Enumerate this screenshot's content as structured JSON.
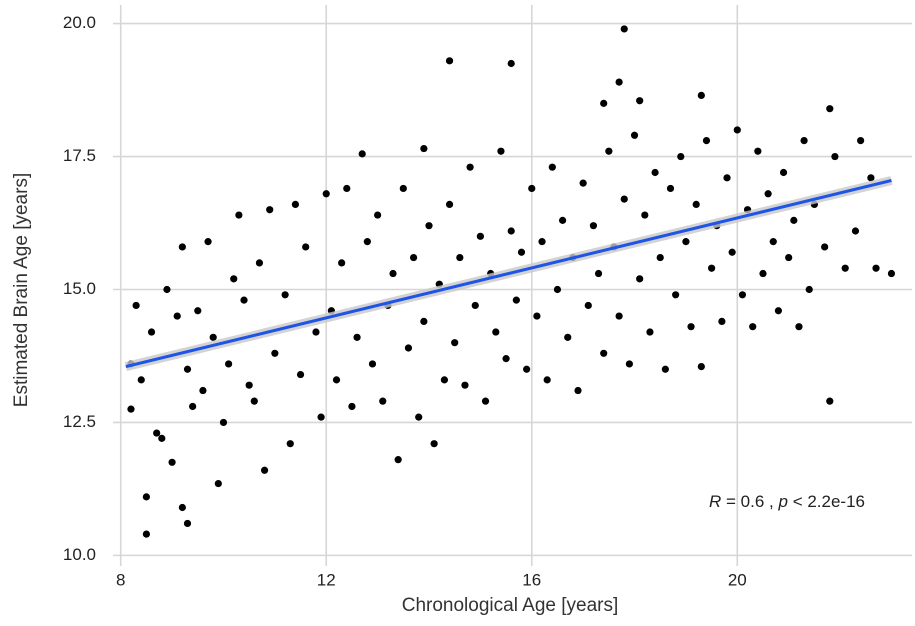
{
  "chart_data": {
    "type": "scatter",
    "xlabel": "Chronological Age [years]",
    "ylabel": "Estimated Brain Age [years]",
    "xlim": [
      7.85,
      23.4
    ],
    "ylim": [
      9.8,
      20.35
    ],
    "xticks": [
      8,
      12,
      16,
      20
    ],
    "yticks": [
      {
        "value": 10,
        "label": "10.0"
      },
      12.5,
      {
        "value": 15,
        "label": "15.0"
      },
      17.5,
      {
        "value": 20,
        "label": "20.0"
      }
    ],
    "grid": true,
    "color": "#000000",
    "x": [
      8.2,
      8.3,
      8.4,
      8.6,
      8.7,
      8.8,
      8.9,
      9.0,
      9.1,
      9.2,
      9.3,
      9.4,
      9.5,
      9.6,
      9.7,
      9.8,
      10.0,
      10.1,
      10.2,
      10.3,
      10.4,
      10.5,
      10.6,
      10.7,
      10.8,
      10.9,
      11.0,
      11.2,
      11.3,
      11.4,
      11.5,
      11.6,
      11.8,
      11.9,
      12.0,
      12.1,
      12.2,
      12.3,
      12.4,
      12.5,
      12.6,
      12.8,
      12.9,
      13.0,
      13.1,
      13.2,
      13.3,
      13.4,
      13.5,
      13.6,
      13.7,
      13.8,
      13.9,
      14.0,
      14.1,
      14.2,
      14.3,
      14.4,
      14.5,
      14.6,
      14.7,
      14.8,
      14.9,
      15.0,
      15.1,
      15.2,
      15.3,
      15.4,
      15.5,
      15.6,
      15.7,
      15.8,
      15.9,
      16.0,
      16.1,
      16.2,
      16.3,
      16.4,
      16.5,
      16.6,
      16.7,
      16.8,
      16.9,
      17.0,
      17.1,
      17.2,
      17.3,
      17.4,
      17.5,
      17.6,
      17.7,
      17.8,
      17.9,
      18.0,
      18.1,
      18.2,
      18.3,
      18.4,
      18.5,
      18.6,
      18.7,
      18.8,
      18.9,
      19.0,
      19.1,
      19.2,
      19.3,
      19.4,
      19.5,
      19.6,
      19.7,
      19.8,
      19.9,
      20.0,
      20.1,
      20.2,
      20.3,
      20.4,
      20.5,
      20.6,
      20.7,
      20.8,
      20.9,
      21.0,
      21.1,
      21.2,
      21.3,
      21.4,
      21.5,
      21.7,
      21.9,
      22.1,
      22.3,
      22.4,
      22.6,
      22.7,
      8.5,
      8.5,
      9.3,
      9.2,
      9.9,
      8.2,
      17.8,
      14.4,
      15.6,
      17.7,
      21.8,
      21.8,
      23.0,
      13.9,
      12.7,
      19.3,
      18.1,
      17.4
    ],
    "y": [
      13.6,
      14.7,
      13.3,
      14.2,
      12.3,
      12.2,
      15.0,
      11.75,
      14.5,
      15.8,
      13.5,
      12.8,
      14.6,
      13.1,
      15.9,
      14.1,
      12.5,
      13.6,
      15.2,
      16.4,
      14.8,
      13.2,
      12.9,
      15.5,
      11.6,
      16.5,
      13.8,
      14.9,
      12.1,
      16.6,
      13.4,
      15.8,
      14.2,
      12.6,
      16.8,
      14.6,
      13.3,
      15.5,
      16.9,
      12.8,
      14.1,
      15.9,
      13.6,
      16.4,
      12.9,
      14.7,
      15.3,
      11.8,
      16.9,
      13.9,
      15.6,
      12.6,
      14.4,
      16.2,
      12.1,
      15.1,
      13.3,
      16.6,
      14.0,
      15.6,
      13.2,
      17.3,
      14.7,
      16.0,
      12.9,
      15.3,
      14.2,
      17.6,
      13.7,
      16.1,
      14.8,
      15.7,
      13.5,
      16.9,
      14.5,
      15.9,
      13.3,
      17.3,
      15.0,
      16.3,
      14.1,
      15.6,
      13.1,
      17.0,
      14.7,
      16.2,
      15.3,
      13.8,
      17.6,
      15.8,
      14.5,
      16.7,
      13.6,
      17.9,
      15.2,
      16.4,
      14.2,
      17.2,
      15.6,
      13.5,
      16.9,
      14.9,
      17.5,
      15.9,
      14.3,
      16.6,
      13.55,
      17.8,
      15.4,
      16.2,
      14.4,
      17.1,
      15.7,
      18.0,
      14.9,
      16.5,
      14.3,
      17.6,
      15.3,
      16.8,
      15.9,
      14.6,
      17.2,
      15.6,
      16.3,
      14.3,
      17.8,
      15.0,
      16.6,
      15.8,
      17.5,
      15.4,
      16.1,
      17.8,
      17.1,
      15.4,
      10.4,
      11.1,
      10.6,
      10.9,
      11.35,
      12.75,
      19.9,
      19.3,
      19.25,
      18.9,
      12.9,
      18.4,
      15.3,
      17.65,
      17.55,
      18.65,
      18.55,
      18.5
    ],
    "regression": {
      "x": [
        8.1,
        23.0
      ],
      "y": [
        13.55,
        17.05
      ],
      "color": "#1f55e6"
    },
    "annotation": [
      "R",
      " = 0.6 , ",
      "p",
      " < 2.2e-16"
    ]
  }
}
